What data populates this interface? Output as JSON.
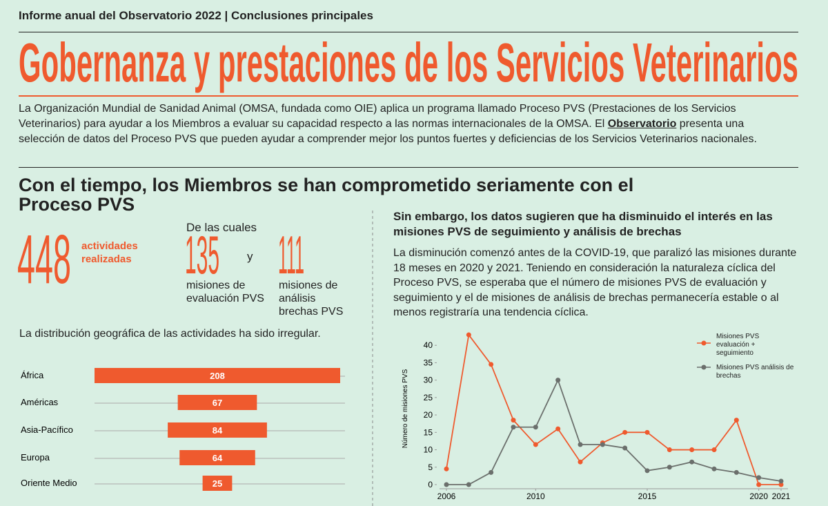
{
  "header": {
    "kicker": "Informe anual del Observatorio 2022 | Conclusiones principales",
    "title": "Gobernanza y prestaciones de los Servicios Veterinarios"
  },
  "intro": {
    "before": "La Organización Mundial de Sanidad Animal (OMSA, fundada como OIE) aplica un programa llamado Proceso PVS (Prestaciones de los Servicios Veterinarios) para ayudar a los Miembros a evaluar su capacidad respecto a las normas internacionales de la OMSA. El ",
    "link": "Observatorio",
    "after": " presenta una selección de datos del Proceso PVS que pueden ayudar a comprender mejor los puntos fuertes y deficiencias de los Servicios Veterinarios nacionales."
  },
  "section": {
    "title": "Con el tiempo, los Miembros se han comprometido seriamente con el Proceso PVS"
  },
  "stats": {
    "total": {
      "value": 448,
      "label": "actividades realizadas"
    },
    "of_which": "De las cuales",
    "evaluation": {
      "value": 135,
      "label": "misiones de evaluación PVS"
    },
    "conjunction": "y",
    "gap": {
      "value": 111,
      "label": "misiones de análisis brechas PVS"
    }
  },
  "geo_note": "La distribución geográfica de las actividades ha sido irregular.",
  "right": {
    "title": "Sin embargo, los datos sugieren que ha disminuido el interés en las misiones PVS de seguimiento y análisis de brechas",
    "body": "La disminución comenzó antes de la COVID-19, que paralizó las misiones durante 18 meses en 2020 y 2021. Teniendo en consideración la naturaleza cíclica del Proceso PVS, se esperaba que el número de misiones PVS de evaluación y seguimiento y el de misiones de análisis de brechas permanecería estable o al menos registraría una tendencia cíclica."
  },
  "chart_data": [
    {
      "type": "bar",
      "orientation": "horizontal",
      "categories": [
        "África",
        "Américas",
        "Asia-Pacífico",
        "Europa",
        "Oriente Medio"
      ],
      "values": [
        208,
        67,
        84,
        64,
        25
      ],
      "color": "#ef5a2e"
    },
    {
      "type": "line",
      "y_label": "Número de misiones PVS",
      "x": [
        2006,
        2007,
        2008,
        2009,
        2010,
        2011,
        2012,
        2013,
        2014,
        2015,
        2016,
        2017,
        2018,
        2019,
        2020,
        2021
      ],
      "xlim": [
        2006,
        2021
      ],
      "xticks": [
        2006,
        2010,
        2015,
        2020,
        2021
      ],
      "ylim": [
        0,
        44
      ],
      "yticks": [
        0,
        5,
        10,
        15,
        20,
        25,
        30,
        35,
        40
      ],
      "legend": "upper right",
      "series": [
        {
          "name": "Misiones PVS evaluación + seguimiento",
          "color": "#ef5a2e",
          "values": [
            4.5,
            43,
            34.5,
            18.5,
            11.5,
            16,
            6.5,
            12,
            15,
            15,
            10,
            10,
            10,
            18.5,
            0,
            0
          ]
        },
        {
          "name": "Misiones PVS  análisis de brechas",
          "color": "#6b6f6c",
          "values": [
            0,
            0,
            3.5,
            16.5,
            16.5,
            30,
            11.5,
            11.5,
            10.5,
            4,
            5,
            6.5,
            4.5,
            3.5,
            2,
            1
          ]
        }
      ]
    }
  ]
}
